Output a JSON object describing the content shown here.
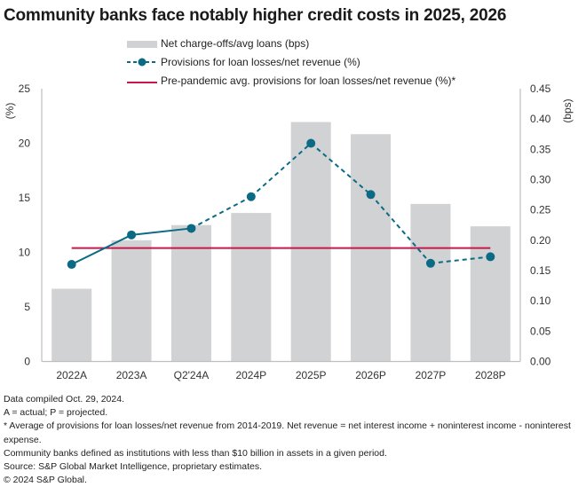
{
  "title": "Community banks face notably higher credit costs in 2025, 2026",
  "legend": [
    {
      "label": "Net charge-offs/avg loans (bps)",
      "type": "bar",
      "color": "#d1d2d4"
    },
    {
      "label": "Provisions for loan losses/net revenue (%)",
      "type": "line-dashed-marker",
      "color": "#0b6b85"
    },
    {
      "label": "Pre-pandemic avg. provisions for loan losses/net revenue (%)*",
      "type": "line",
      "color": "#c8174d"
    }
  ],
  "chart_data": {
    "type": "bar+line",
    "title": "Community banks face notably higher credit costs in 2025, 2026",
    "categories": [
      "2022A",
      "2023A",
      "Q2'24A",
      "2024P",
      "2025P",
      "2026P",
      "2027P",
      "2028P"
    ],
    "series": [
      {
        "name": "Net charge-offs/avg loans (bps)",
        "type": "bar",
        "axis": "right",
        "color": "#d1d2d4",
        "values": [
          0.12,
          0.2,
          0.225,
          0.245,
          0.395,
          0.375,
          0.26,
          0.223
        ]
      },
      {
        "name": "Provisions for loan losses/net revenue (%)",
        "type": "line",
        "axis": "left",
        "color": "#0b6b85",
        "solid_until_index": 2,
        "values": [
          8.9,
          11.6,
          12.2,
          15.1,
          20.0,
          15.3,
          9.0,
          9.6
        ]
      },
      {
        "name": "Pre-pandemic avg. provisions for loan losses/net revenue (%)*",
        "type": "hline",
        "axis": "left",
        "color": "#c8174d",
        "value": 10.4
      }
    ],
    "left_axis": {
      "label": "(%)",
      "ylim": [
        0,
        25
      ],
      "ticks": [
        "0",
        "5",
        "10",
        "15",
        "20",
        "25"
      ]
    },
    "right_axis": {
      "label": "(bps)",
      "ylim": [
        0,
        0.45
      ],
      "ticks": [
        "0.00",
        "0.05",
        "0.10",
        "0.15",
        "0.20",
        "0.25",
        "0.30",
        "0.35",
        "0.40",
        "0.45"
      ]
    },
    "grid": false,
    "legend_position": "top"
  },
  "notes": [
    "Data compiled Oct. 29, 2024.",
    "A = actual; P = projected.",
    "* Average of provisions for loan losses/net revenue from 2014-2019. Net revenue = net interest income + noninterest income - noninterest expense.",
    "Community banks defined as institutions with less than $10 billion in assets in a given period.",
    "Source: S&P Global Market Intelligence, proprietary estimates.",
    "© 2024 S&P Global."
  ]
}
